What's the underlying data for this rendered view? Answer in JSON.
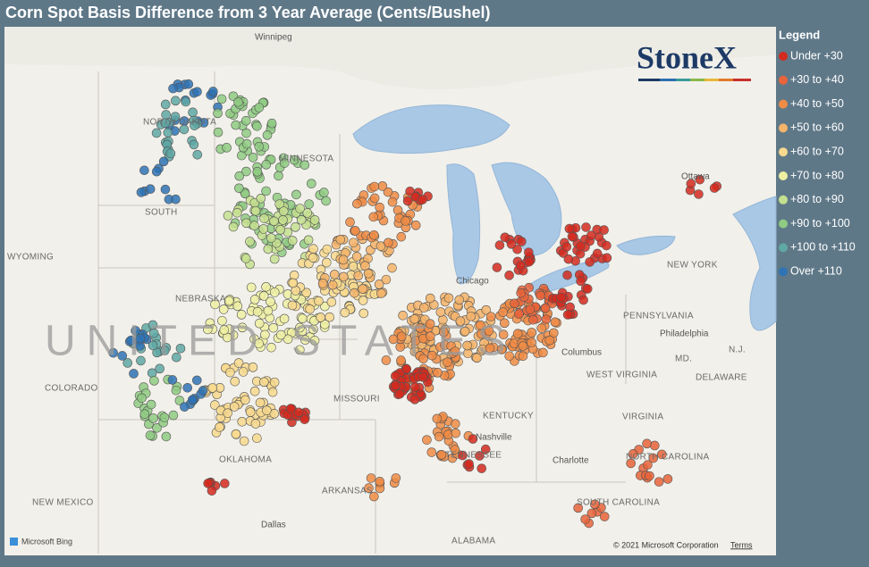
{
  "title": "Corn Spot Basis Difference from 3 Year Average (Cents/Bushel)",
  "brand": "StoneX",
  "legend": {
    "title": "Legend",
    "items": [
      {
        "label": "Under +30",
        "color": "#d42a1f"
      },
      {
        "label": "+30 to +40",
        "color": "#e8643a"
      },
      {
        "label": "+40 to +50",
        "color": "#f08c45"
      },
      {
        "label": "+50 to +60",
        "color": "#f5b46a"
      },
      {
        "label": "+60 to +70",
        "color": "#f8d98e"
      },
      {
        "label": "+70 to +80",
        "color": "#eef0a2"
      },
      {
        "label": "+80 to +90",
        "color": "#c5e08f"
      },
      {
        "label": "+90 to +100",
        "color": "#8fcb83"
      },
      {
        "label": "+100 to +110",
        "color": "#5fa8a4"
      },
      {
        "label": "Over +110",
        "color": "#2f73b5"
      }
    ]
  },
  "places": [
    "Winnipeg",
    "NORTH DAKOTA",
    "MINNESOTA",
    "SOUTH",
    "WYOMING",
    "NEBRASKA",
    "COLORADO",
    "MISSOURI",
    "OKLAHOMA",
    "ARKANSAS",
    "NEW MEXICO",
    "Dallas",
    "KENTUCKY",
    "Nashville",
    "TENNESSEE",
    "ALABAMA",
    "Charlotte",
    "NORTH CAROLINA",
    "SOUTH CAROLINA",
    "VIRGINIA",
    "WEST VIRGINIA",
    "PENNSYLVANIA",
    "Philadelphia",
    "NEW YORK",
    "Chicago",
    "Columbus",
    "Ottawa",
    "N.J.",
    "DELAWARE",
    "MD.",
    "UNITED STATES"
  ],
  "footer": {
    "provider": "Microsoft Bing",
    "copyright": "© 2021 Microsoft Corporation",
    "terms": "Terms"
  }
}
